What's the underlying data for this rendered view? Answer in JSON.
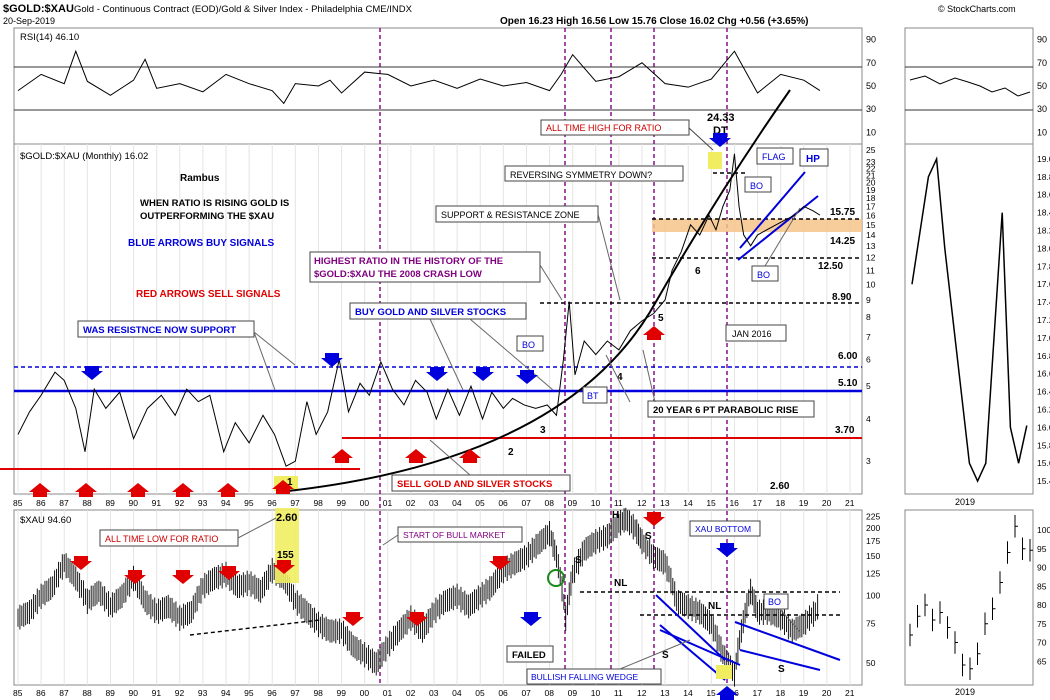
{
  "header": {
    "title": "$GOLD:$XAU",
    "subtitle": "Gold - Continuous Contract (EOD)/Gold & Silver Index - Philadelphia  CME/INDX",
    "date": "20-Sep-2019",
    "brand": "© StockCharts.com",
    "ohlc": "Open 16.23  High 16.56  Low 15.76  Close 16.02  Chg +0.56 (+3.65%)"
  },
  "colors": {
    "blue": "#0000dd",
    "red": "#e00000",
    "purple": "#800080",
    "callout_red": "#cc0000",
    "black": "#000000",
    "orange_zone": "#f4c489",
    "yellow_hl": "#f0ee60",
    "rsi_green": "#2e7d32"
  },
  "chart_data": [
    {
      "type": "line",
      "name": "rsi-panel",
      "title": "RSI(14) 46.10",
      "ylim": [
        0,
        100
      ],
      "y_ticks": [
        10,
        30,
        50,
        70,
        90
      ],
      "guide_lines": [
        30,
        70
      ],
      "x": [
        1985,
        1986,
        1987,
        1987.5,
        1988,
        1989,
        1990,
        1990.5,
        1991,
        1992,
        1993,
        1994,
        1995,
        1996,
        1996.5,
        1997,
        1998,
        1998.5,
        1999,
        2000,
        2001,
        2002,
        2003,
        2004,
        2005,
        2006,
        2007,
        2008,
        2008.5,
        2009,
        2010,
        2011,
        2012,
        2013,
        2014,
        2015,
        2016,
        2017,
        2018,
        2019,
        2019.7
      ],
      "values": [
        46,
        60,
        52,
        80,
        54,
        42,
        55,
        73,
        48,
        52,
        45,
        60,
        52,
        46,
        35,
        52,
        50,
        55,
        44,
        62,
        60,
        50,
        55,
        48,
        56,
        50,
        53,
        46,
        60,
        77,
        54,
        58,
        70,
        52,
        49,
        56,
        80,
        44,
        60,
        55,
        46.1
      ]
    },
    {
      "type": "line",
      "name": "ratio-panel",
      "title": "$GOLD:$XAU (Monthly) 16.02",
      "x_ticks": [
        "85",
        "86",
        "87",
        "88",
        "89",
        "90",
        "91",
        "92",
        "93",
        "94",
        "95",
        "96",
        "97",
        "98",
        "99",
        "00",
        "01",
        "02",
        "03",
        "04",
        "05",
        "06",
        "07",
        "08",
        "09",
        "10",
        "11",
        "12",
        "13",
        "14",
        "15",
        "16",
        "17",
        "18",
        "19",
        "20",
        "21"
      ],
      "y_ticks": [
        "25",
        "23",
        "22",
        "21",
        "20",
        "19",
        "18",
        "17",
        "16",
        "15",
        "14",
        "13",
        "12",
        "11",
        "10",
        "9",
        "8",
        "7",
        "6",
        "5",
        "4",
        "3"
      ],
      "x": [
        1985,
        1985.5,
        1986,
        1986.6,
        1987,
        1987.5,
        1987.9,
        1988.3,
        1988.8,
        1989.4,
        1990,
        1990.6,
        1991.2,
        1991.8,
        1992.3,
        1992.8,
        1993.3,
        1993.9,
        1994.4,
        1995,
        1995.6,
        1996.1,
        1996.6,
        1997,
        1997.5,
        1997.9,
        1998.4,
        1998.9,
        1999.3,
        1999.8,
        2000.2,
        2000.7,
        2001.2,
        2001.7,
        2002.2,
        2002.7,
        2003.1,
        2003.6,
        2004.1,
        2004.6,
        2005.1,
        2005.5,
        2006,
        2006.4,
        2006.9,
        2007.4,
        2007.9,
        2008.3,
        2008.6,
        2008.85,
        2009.1,
        2009.5,
        2010,
        2010.5,
        2011,
        2011.5,
        2012,
        2012.5,
        2013,
        2013.3,
        2013.7,
        2014.1,
        2014.5,
        2014.9,
        2015.2,
        2015.5,
        2015.8,
        2016,
        2016.2,
        2016.4,
        2016.7,
        2017,
        2017.4,
        2017.8,
        2018.2,
        2018.6,
        2019,
        2019.4,
        2019.7
      ],
      "values": [
        3.6,
        4.2,
        4.7,
        5.5,
        5.2,
        4.3,
        3.2,
        4.9,
        4.3,
        4.8,
        3.5,
        4.3,
        4.7,
        4.1,
        4.9,
        4.5,
        4.7,
        3.2,
        3.9,
        3.4,
        4.1,
        3.6,
        2.9,
        3.0,
        4.5,
        3.6,
        4.2,
        6.0,
        4.2,
        5.1,
        4.7,
        5.9,
        4.9,
        4.4,
        5.2,
        4.8,
        4.0,
        4.9,
        4.1,
        5.0,
        4.0,
        4.8,
        4.3,
        4.6,
        4.4,
        4.3,
        4.4,
        4.1,
        6.0,
        8.9,
        5.4,
        6.8,
        6.2,
        6.8,
        6.4,
        7.3,
        7.8,
        8.2,
        9.0,
        11.0,
        12.5,
        15.0,
        14.0,
        16.0,
        14.5,
        17.0,
        19.0,
        24.33,
        17.0,
        14.0,
        13.0,
        14.0,
        14.5,
        15.0,
        15.5,
        16.0,
        17.0,
        16.5,
        16.02
      ]
    },
    {
      "type": "line",
      "name": "ratio-2019-inset",
      "x_ticks": [
        "2019"
      ],
      "y_ticks": [
        "19.0",
        "18.8",
        "18.6",
        "18.4",
        "18.2",
        "18.0",
        "17.8",
        "17.6",
        "17.4",
        "17.2",
        "17.0",
        "16.8",
        "16.6",
        "16.4",
        "16.2",
        "16.0",
        "15.8",
        "15.6",
        "15.4"
      ],
      "values": [
        17.6,
        18.2,
        18.8,
        19.0,
        18.0,
        17.2,
        16.4,
        15.6,
        15.4,
        15.6,
        17.0,
        18.4,
        16.0,
        15.6,
        16.02
      ]
    },
    {
      "type": "bar",
      "name": "xau-panel",
      "title": "$XAU 94.60",
      "y_ticks": [
        "225",
        "200",
        "175",
        "150",
        "125",
        "100",
        "75",
        "50"
      ],
      "x": [
        1985,
        1985.5,
        1986,
        1986.5,
        1987,
        1987.5,
        1988,
        1988.5,
        1989,
        1989.5,
        1990,
        1990.5,
        1991,
        1991.5,
        1992,
        1992.5,
        1993,
        1993.5,
        1994,
        1994.5,
        1995,
        1995.5,
        1996,
        1996.5,
        1997,
        1997.5,
        1998,
        1998.5,
        1999,
        1999.5,
        2000,
        2000.5,
        2001,
        2001.5,
        2002,
        2002.5,
        2003,
        2003.5,
        2004,
        2004.5,
        2005,
        2005.5,
        2006,
        2006.5,
        2007,
        2007.5,
        2008,
        2008.3,
        2008.7,
        2009,
        2009.5,
        2010,
        2010.5,
        2011,
        2011.3,
        2011.7,
        2012,
        2012.5,
        2013,
        2013.5,
        2014,
        2014.5,
        2015,
        2015.5,
        2016,
        2016.3,
        2016.7,
        2017,
        2017.5,
        2018,
        2018.5,
        2019,
        2019.5,
        2019.7
      ],
      "values": [
        80,
        85,
        100,
        110,
        140,
        120,
        95,
        105,
        90,
        100,
        120,
        95,
        85,
        90,
        80,
        85,
        110,
        120,
        125,
        110,
        115,
        105,
        130,
        120,
        95,
        85,
        75,
        70,
        70,
        60,
        55,
        50,
        60,
        70,
        80,
        70,
        85,
        95,
        100,
        90,
        100,
        110,
        130,
        140,
        150,
        170,
        190,
        150,
        80,
        125,
        160,
        175,
        185,
        210,
        220,
        200,
        175,
        150,
        140,
        95,
        90,
        85,
        75,
        55,
        45,
        70,
        105,
        85,
        85,
        80,
        70,
        75,
        85,
        94.6
      ]
    },
    {
      "type": "bar",
      "name": "xau-2019-inset",
      "x_ticks": [
        "2019"
      ],
      "y_ticks": [
        "100",
        "95",
        "90",
        "85",
        "80",
        "75",
        "70",
        "65"
      ],
      "values": [
        72,
        77,
        80,
        76,
        78,
        74,
        70,
        64,
        63,
        67,
        75,
        79,
        86,
        94,
        101,
        95,
        94.6
      ]
    }
  ],
  "annotations": {
    "rsi_right_ticks": [
      "90",
      "70",
      "50",
      "30",
      "10"
    ],
    "rsi_inset_ticks": [
      "90",
      "70",
      "50",
      "30",
      "10"
    ],
    "dt_value": "24.33",
    "dt_label": "DT",
    "all_time_high": "ALL TIME HIGH FOR RATIO",
    "flag": "FLAG",
    "hp": "HP",
    "reversing": "REVERSING SYMMETRY DOWN?",
    "bo": "BO",
    "rambus": "Rambus",
    "rising1": "WHEN RATIO IS RISING GOLD IS",
    "rising2": "OUTPERFORMING THE $XAU",
    "support_zone": "SUPPORT & RESISTANCE ZONE",
    "blue_arrows": "BLUE ARROWS BUY SIGNALS",
    "red_arrows": "RED ARROWS SELL SIGNALS",
    "highest1": "HIGHEST RATIO IN THE HISTORY OF THE",
    "highest2": "$GOLD:$XAU THE 2008 CRASH LOW",
    "lvl_1575": "15.75",
    "lvl_1425": "14.25",
    "lvl_1250": "12.50",
    "lvl_890": "8.90",
    "lvl_600": "6.00",
    "lvl_510": "5.10",
    "lvl_370": "3.70",
    "lvl_260": "2.60",
    "was_resistance": "WAS RESISTNCE NOW SUPPORT",
    "buy_stocks": "BUY GOLD AND SILVER STOCKS",
    "sell_stocks": "SELL GOLD AND SILVER STOCKS",
    "jan2016": "JAN 2016",
    "bt": "BT",
    "parabolic": "20 YEAR 6 PT  PARABOLIC RISE",
    "pt1": "1",
    "pt2": "2",
    "pt3": "3",
    "pt4": "4",
    "pt5": "5",
    "pt6": "6",
    "low_260": "2.60",
    "all_time_low": "ALL TIME LOW FOR RATIO",
    "start_bull": "START OF BULL MARKET",
    "xau_155": "155",
    "failed": "FAILED",
    "bullish_wedge": "BULLISH FALLING WEDGE",
    "xau_bottom": "XAU BOTTOM",
    "s": "S",
    "h": "H",
    "nl": "NL"
  }
}
